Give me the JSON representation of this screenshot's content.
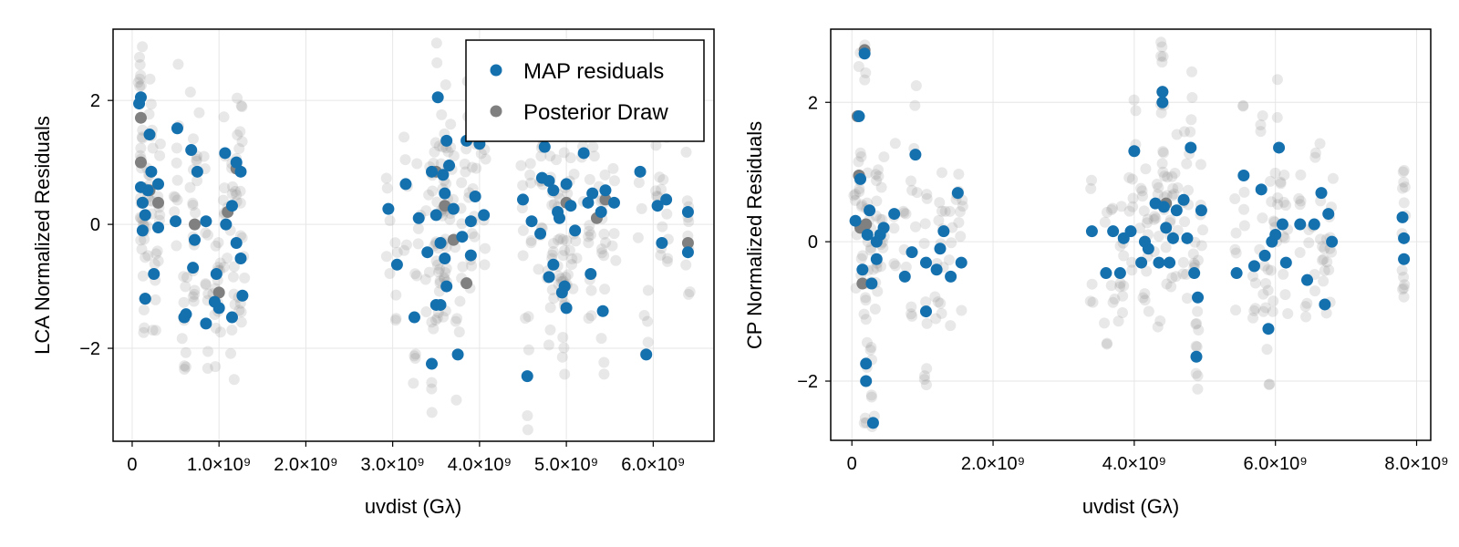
{
  "colors": {
    "map": "#1570ae",
    "posterior": "#808080",
    "grid": "#e6e6e6",
    "frame": "#000000"
  },
  "chart_data": [
    {
      "type": "scatter",
      "title": "",
      "xlabel": "uvdist (Gλ)",
      "ylabel": "LCA Normalized Residuals",
      "xlim": [
        -220000000.0,
        6700000000.0
      ],
      "ylim": [
        -3.5,
        3.15
      ],
      "xticks": [
        0,
        1000000000.0,
        2000000000.0,
        3000000000.0,
        4000000000.0,
        5000000000.0,
        6000000000.0
      ],
      "xtick_labels": [
        "0",
        "1.0×10⁹",
        "2.0×10⁹",
        "3.0×10⁹",
        "4.0×10⁹",
        "5.0×10⁹",
        "6.0×10⁹"
      ],
      "yticks": [
        -2,
        0,
        2
      ],
      "ytick_labels": [
        "−2",
        "0",
        "2"
      ],
      "grid": true,
      "legend": {
        "placement": "top-right",
        "entries": [
          "MAP residuals",
          "Posterior Draw"
        ]
      },
      "series": [
        {
          "name": "MAP residuals",
          "x": [
            80000000.0,
            100000000.0,
            100000000.0,
            120000000.0,
            120000000.0,
            150000000.0,
            150000000.0,
            180000000.0,
            200000000.0,
            220000000.0,
            250000000.0,
            300000000.0,
            300000000.0,
            500000000.0,
            520000000.0,
            600000000.0,
            620000000.0,
            680000000.0,
            700000000.0,
            720000000.0,
            750000000.0,
            850000000.0,
            850000000.0,
            950000000.0,
            970000000.0,
            1000000000.0,
            1070000000.0,
            1080000000.0,
            1150000000.0,
            1150000000.0,
            1200000000.0,
            1200000000.0,
            1250000000.0,
            1250000000.0,
            1270000000.0,
            2950000000.0,
            3050000000.0,
            3150000000.0,
            3250000000.0,
            3300000000.0,
            3400000000.0,
            3450000000.0,
            3450000000.0,
            3500000000.0,
            3500000000.0,
            3520000000.0,
            3550000000.0,
            3550000000.0,
            3580000000.0,
            3600000000.0,
            3600000000.0,
            3620000000.0,
            3620000000.0,
            3650000000.0,
            3700000000.0,
            3750000000.0,
            3800000000.0,
            3850000000.0,
            3900000000.0,
            3900000000.0,
            3950000000.0,
            4000000000.0,
            4050000000.0,
            4500000000.0,
            4550000000.0,
            4600000000.0,
            4700000000.0,
            4720000000.0,
            4750000000.0,
            4800000000.0,
            4800000000.0,
            4850000000.0,
            4850000000.0,
            4900000000.0,
            4920000000.0,
            4950000000.0,
            4980000000.0,
            5000000000.0,
            5000000000.0,
            5050000000.0,
            5100000000.0,
            5200000000.0,
            5250000000.0,
            5280000000.0,
            5300000000.0,
            5400000000.0,
            5420000000.0,
            5450000000.0,
            5550000000.0,
            5850000000.0,
            5920000000.0,
            6050000000.0,
            6100000000.0,
            6150000000.0,
            6400000000.0,
            6400000000.0
          ],
          "y": [
            1.95,
            2.05,
            0.6,
            0.35,
            -0.1,
            0.15,
            -1.2,
            0.55,
            1.45,
            0.85,
            -0.8,
            0.65,
            -0.05,
            0.05,
            1.55,
            -1.5,
            -1.45,
            1.2,
            -0.7,
            -0.25,
            0.85,
            0.05,
            -1.6,
            -1.25,
            -0.8,
            -1.35,
            1.15,
            0.0,
            0.3,
            -1.5,
            1.0,
            -0.3,
            0.85,
            -0.55,
            -1.15,
            0.25,
            -0.65,
            0.65,
            -1.5,
            0.1,
            -0.45,
            0.85,
            -2.25,
            -1.3,
            0.15,
            2.05,
            -0.3,
            -1.3,
            0.8,
            0.5,
            -0.55,
            1.35,
            -1.0,
            0.95,
            0.25,
            -2.1,
            -0.2,
            1.35,
            0.05,
            -0.5,
            0.45,
            1.3,
            0.15,
            0.4,
            -2.45,
            0.05,
            -0.15,
            0.75,
            1.25,
            0.7,
            -0.85,
            0.55,
            -0.65,
            0.2,
            0.1,
            -1.1,
            -1.0,
            -1.35,
            0.65,
            0.3,
            -0.1,
            1.15,
            0.35,
            -0.8,
            0.5,
            0.2,
            -1.4,
            0.55,
            0.35,
            0.85,
            -2.1,
            0.3,
            -0.3,
            0.4,
            0.2,
            -0.45
          ]
        },
        {
          "name": "Posterior Draw",
          "x": [
            100000000.0,
            100000000.0,
            120000000.0,
            150000000.0,
            200000000.0,
            300000000.0,
            600000000.0,
            720000000.0,
            1000000000.0,
            1100000000.0,
            1200000000.0,
            3500000000.0,
            3600000000.0,
            3700000000.0,
            3850000000.0,
            5000000000.0,
            5350000000.0,
            5450000000.0,
            6400000000.0
          ],
          "y": [
            1.72,
            1.0,
            0.35,
            -1.2,
            0.55,
            0.35,
            -1.5,
            0.0,
            -1.1,
            0.2,
            0.9,
            0.85,
            0.3,
            -0.25,
            -0.95,
            0.35,
            0.1,
            0.4,
            -0.3
          ]
        }
      ]
    },
    {
      "type": "scatter",
      "title": "",
      "xlabel": "uvdist (Gλ)",
      "ylabel": "CP Normalized Residuals",
      "xlim": [
        -300000000.0,
        8200000000.0
      ],
      "ylim": [
        -2.85,
        3.05
      ],
      "xticks": [
        0,
        2000000000.0,
        4000000000.0,
        6000000000.0,
        8000000000.0
      ],
      "xtick_labels": [
        "0",
        "2.0×10⁹",
        "4.0×10⁹",
        "6.0×10⁹",
        "8.0×10⁹"
      ],
      "yticks": [
        -2,
        0,
        2
      ],
      "ytick_labels": [
        "−2",
        "0",
        "2"
      ],
      "grid": true,
      "series": [
        {
          "name": "MAP residuals",
          "x": [
            50000000.0,
            100000000.0,
            120000000.0,
            150000000.0,
            180000000.0,
            200000000.0,
            200000000.0,
            220000000.0,
            250000000.0,
            280000000.0,
            300000000.0,
            350000000.0,
            350000000.0,
            400000000.0,
            450000000.0,
            600000000.0,
            750000000.0,
            850000000.0,
            900000000.0,
            1050000000.0,
            1050000000.0,
            1200000000.0,
            1250000000.0,
            1300000000.0,
            1400000000.0,
            1500000000.0,
            1550000000.0,
            3400000000.0,
            3600000000.0,
            3700000000.0,
            3800000000.0,
            3850000000.0,
            3950000000.0,
            4000000000.0,
            4100000000.0,
            4150000000.0,
            4200000000.0,
            4300000000.0,
            4350000000.0,
            4400000000.0,
            4400000000.0,
            4420000000.0,
            4450000000.0,
            4500000000.0,
            4550000000.0,
            4600000000.0,
            4700000000.0,
            4750000000.0,
            4800000000.0,
            4850000000.0,
            4880000000.0,
            4900000000.0,
            4950000000.0,
            5450000000.0,
            5550000000.0,
            5700000000.0,
            5800000000.0,
            5850000000.0,
            5900000000.0,
            5950000000.0,
            6000000000.0,
            6050000000.0,
            6100000000.0,
            6150000000.0,
            6350000000.0,
            6450000000.0,
            6550000000.0,
            6650000000.0,
            6700000000.0,
            6750000000.0,
            6800000000.0,
            7800000000.0,
            7820000000.0,
            7820000000.0
          ],
          "y": [
            0.3,
            1.8,
            0.9,
            -0.4,
            2.7,
            -2.0,
            -1.75,
            0.1,
            0.45,
            -0.6,
            -2.6,
            0.0,
            -0.25,
            0.1,
            0.2,
            0.4,
            -0.5,
            -0.15,
            1.25,
            -1.0,
            -0.3,
            -0.4,
            -0.1,
            0.15,
            -0.5,
            0.7,
            -0.3,
            0.15,
            -0.45,
            0.15,
            -0.45,
            0.05,
            0.15,
            1.3,
            -0.3,
            0.0,
            -0.1,
            0.55,
            -0.3,
            2.15,
            2.0,
            0.5,
            0.2,
            -0.3,
            0.05,
            0.45,
            0.6,
            0.05,
            1.35,
            -0.45,
            -1.65,
            -0.8,
            0.45,
            -0.45,
            0.95,
            -0.35,
            0.75,
            -0.2,
            -1.25,
            0.0,
            0.1,
            1.35,
            0.25,
            -0.3,
            0.25,
            -0.55,
            0.25,
            0.7,
            -0.9,
            0.4,
            0.0,
            0.35,
            0.05,
            -0.25
          ]
        },
        {
          "name": "Posterior Draw",
          "x": [
            80000000.0,
            100000000.0,
            120000000.0,
            150000000.0,
            180000000.0,
            200000000.0,
            4400000000.0,
            4450000000.0
          ],
          "y": [
            1.8,
            0.95,
            0.2,
            -0.6,
            2.75,
            0.25,
            2.15,
            0.55
          ]
        }
      ]
    }
  ]
}
